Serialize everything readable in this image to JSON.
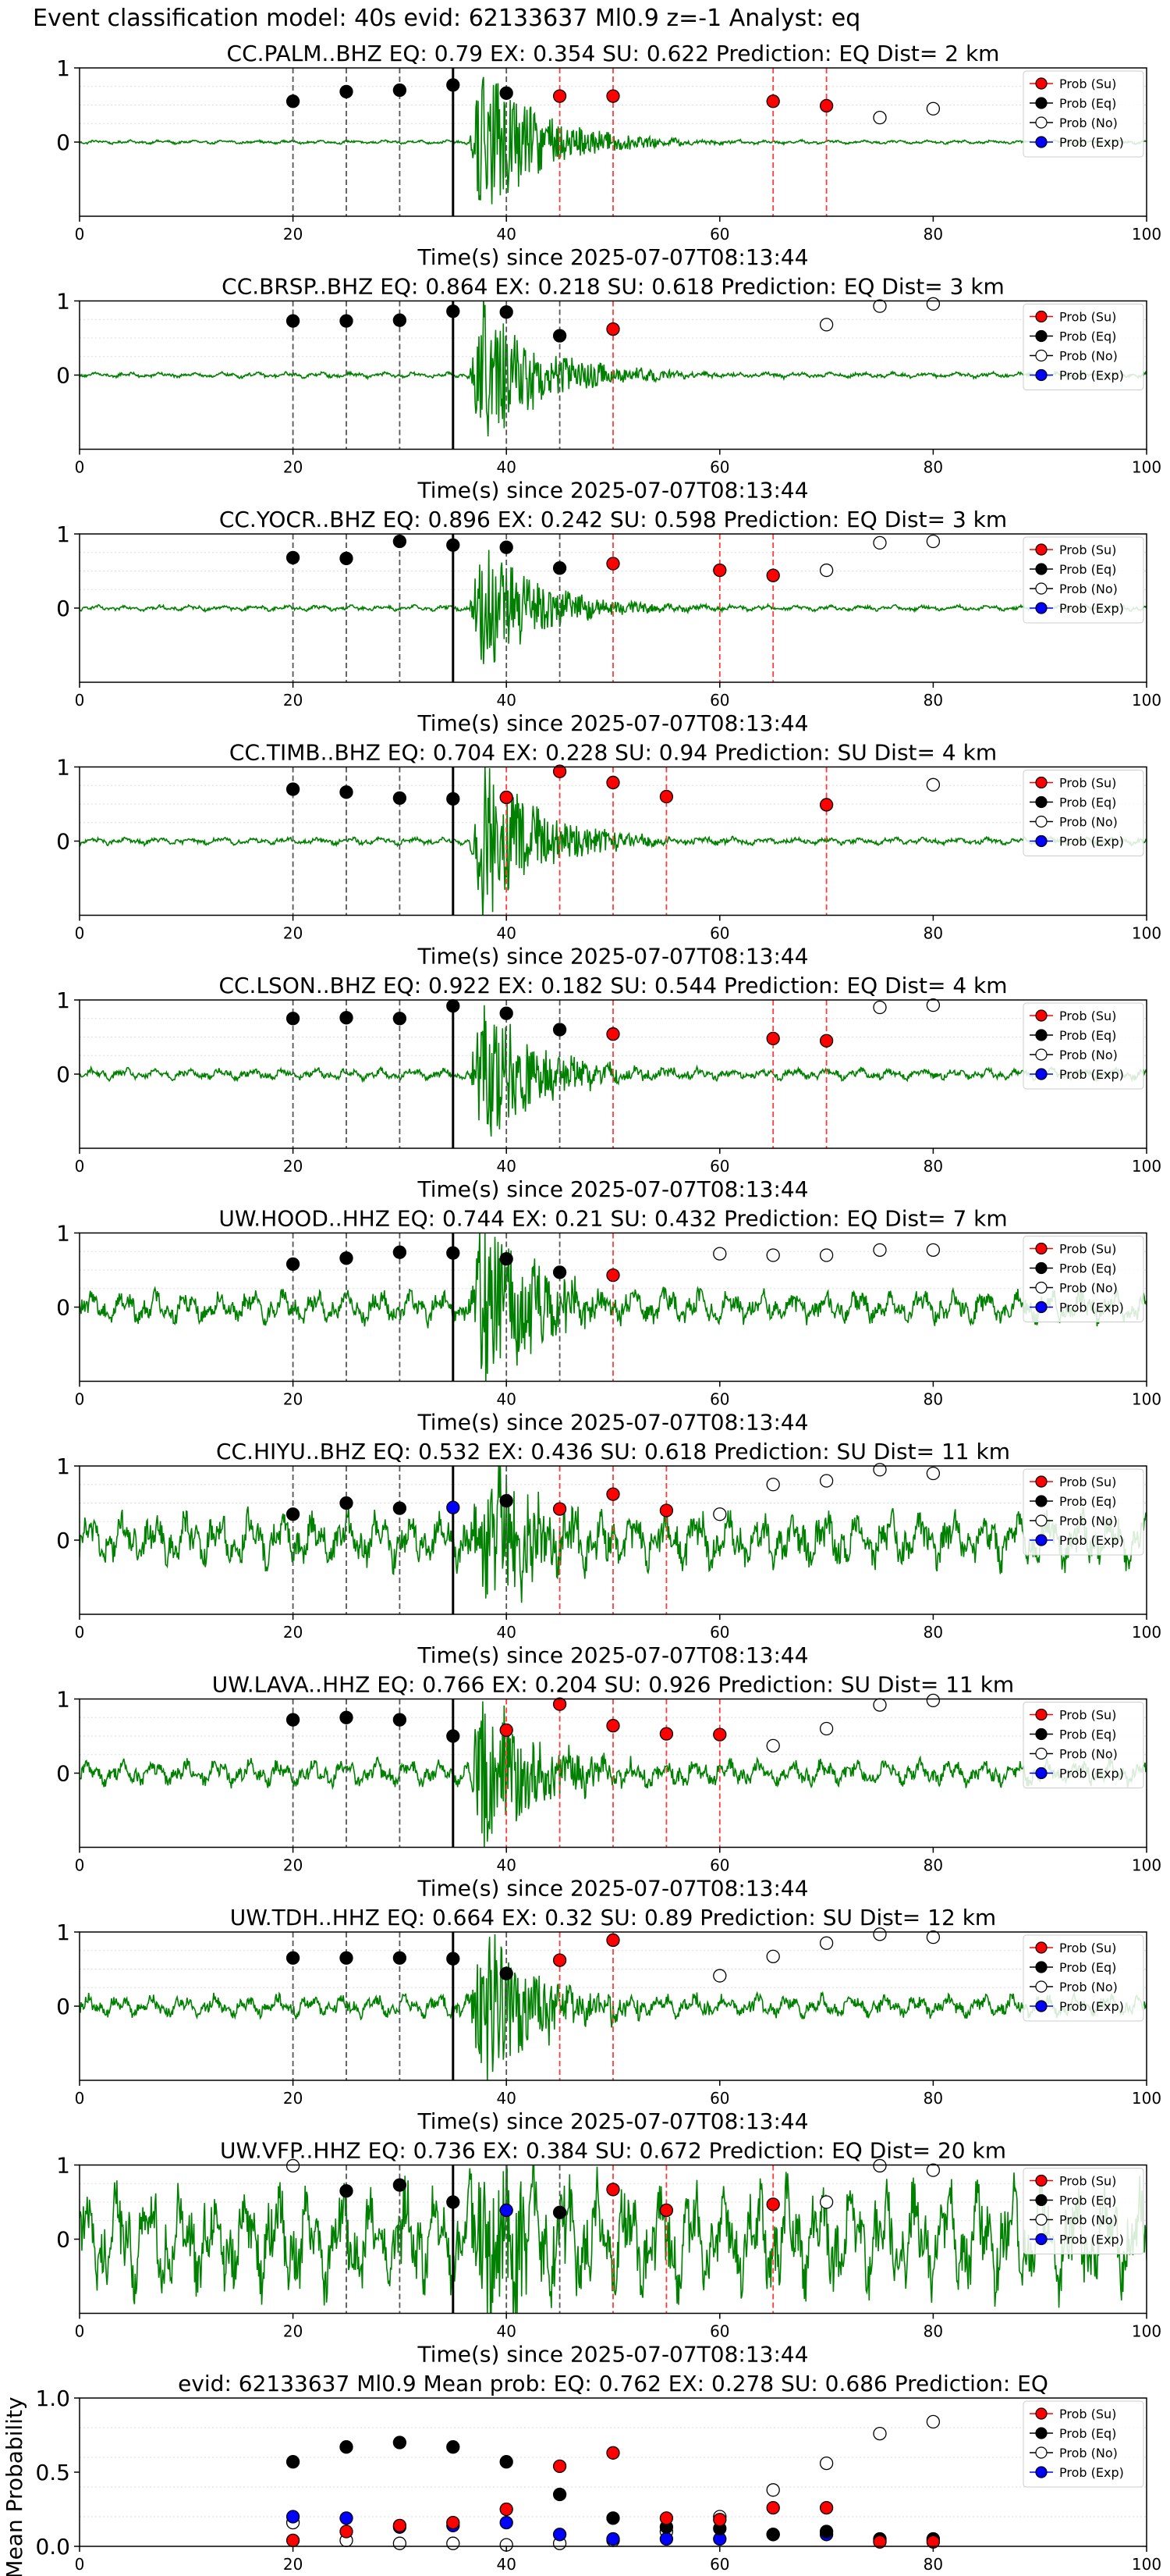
{
  "figure": {
    "suptitle": "Event classification model: 40s evid: 62133637 Ml0.9 z=-1 Analyst: eq",
    "legend": [
      "Prob (Su)",
      "Prob (Eq)",
      "Prob (No)",
      "Prob (Exp)"
    ],
    "legend_colors": {
      "su": "#ff0000",
      "eq": "#000000",
      "no": "#ffffff",
      "exp": "#0000ff"
    },
    "waveform_color": "#008000",
    "origin_line": 35
  },
  "chart_data": [
    {
      "type": "scatter",
      "title": "CC.PALM..BHZ   EQ: 0.79  EX: 0.354  SU: 0.622   Prediction: EQ    Dist= 2 km",
      "xlabel": "Time(s) since 2025-07-07T08:13:44",
      "ylabel": "",
      "xlim": [
        0,
        100
      ],
      "ylim": [
        -1,
        1
      ],
      "xticks": [
        "0",
        "20",
        "40",
        "60",
        "80",
        "100"
      ],
      "yticks": [
        "1",
        "0"
      ],
      "waveform_amplitude": 0.9,
      "noise_level": 0.02,
      "eq": [
        [
          20,
          0.55
        ],
        [
          25,
          0.68
        ],
        [
          30,
          0.7
        ],
        [
          35,
          0.77
        ],
        [
          40,
          0.66
        ]
      ],
      "su": [
        [
          45,
          0.62
        ],
        [
          50,
          0.62
        ],
        [
          65,
          0.55
        ],
        [
          70,
          0.49
        ]
      ],
      "no": [
        [
          75,
          0.33
        ],
        [
          80,
          0.45
        ]
      ],
      "exp": []
    },
    {
      "type": "scatter",
      "title": "CC.BRSP..BHZ   EQ: 0.864  EX: 0.218  SU: 0.618   Prediction: EQ    Dist= 3 km",
      "xlabel": "Time(s) since 2025-07-07T08:13:44",
      "ylabel": "",
      "xlim": [
        0,
        100
      ],
      "ylim": [
        -1,
        1
      ],
      "xticks": [
        "0",
        "20",
        "40",
        "60",
        "80",
        "100"
      ],
      "yticks": [
        "1",
        "0"
      ],
      "waveform_amplitude": 0.85,
      "noise_level": 0.03,
      "eq": [
        [
          20,
          0.73
        ],
        [
          25,
          0.73
        ],
        [
          30,
          0.74
        ],
        [
          35,
          0.86
        ],
        [
          40,
          0.85
        ],
        [
          45,
          0.53
        ]
      ],
      "su": [
        [
          50,
          0.62
        ]
      ],
      "no": [
        [
          70,
          0.68
        ],
        [
          75,
          0.93
        ],
        [
          80,
          0.96
        ]
      ],
      "exp": []
    },
    {
      "type": "scatter",
      "title": "CC.YOCR..BHZ   EQ: 0.896  EX: 0.242  SU: 0.598   Prediction: EQ    Dist= 3 km",
      "xlabel": "Time(s) since 2025-07-07T08:13:44",
      "ylabel": "",
      "xlim": [
        0,
        100
      ],
      "ylim": [
        -1,
        1
      ],
      "xticks": [
        "0",
        "20",
        "40",
        "60",
        "80",
        "100"
      ],
      "yticks": [
        "1",
        "0"
      ],
      "waveform_amplitude": 0.75,
      "noise_level": 0.03,
      "eq": [
        [
          20,
          0.68
        ],
        [
          25,
          0.67
        ],
        [
          30,
          0.9
        ],
        [
          35,
          0.85
        ],
        [
          40,
          0.82
        ],
        [
          45,
          0.54
        ]
      ],
      "su": [
        [
          50,
          0.6
        ],
        [
          60,
          0.51
        ],
        [
          65,
          0.44
        ]
      ],
      "no": [
        [
          70,
          0.51
        ],
        [
          75,
          0.88
        ],
        [
          80,
          0.9
        ]
      ],
      "exp": []
    },
    {
      "type": "scatter",
      "title": "CC.TIMB..BHZ   EQ: 0.704  EX: 0.228  SU: 0.94   Prediction: SU    Dist= 4 km",
      "xlabel": "Time(s) since 2025-07-07T08:13:44",
      "ylabel": "",
      "xlim": [
        0,
        100
      ],
      "ylim": [
        -1,
        1
      ],
      "xticks": [
        "0",
        "20",
        "40",
        "60",
        "80",
        "100"
      ],
      "yticks": [
        "1",
        "0"
      ],
      "waveform_amplitude": 0.95,
      "noise_level": 0.04,
      "eq": [
        [
          20,
          0.7
        ],
        [
          25,
          0.66
        ],
        [
          30,
          0.58
        ],
        [
          35,
          0.57
        ]
      ],
      "su": [
        [
          40,
          0.59
        ],
        [
          45,
          0.94
        ],
        [
          50,
          0.79
        ],
        [
          55,
          0.6
        ],
        [
          70,
          0.49
        ]
      ],
      "no": [
        [
          80,
          0.76
        ]
      ],
      "exp": []
    },
    {
      "type": "scatter",
      "title": "CC.LSON..BHZ   EQ: 0.922  EX: 0.182  SU: 0.544   Prediction: EQ    Dist= 4 km",
      "xlabel": "Time(s) since 2025-07-07T08:13:44",
      "ylabel": "",
      "xlim": [
        0,
        100
      ],
      "ylim": [
        -1,
        1
      ],
      "xticks": [
        "0",
        "20",
        "40",
        "60",
        "80",
        "100"
      ],
      "yticks": [
        "1",
        "0"
      ],
      "waveform_amplitude": 0.8,
      "noise_level": 0.06,
      "eq": [
        [
          20,
          0.75
        ],
        [
          25,
          0.76
        ],
        [
          30,
          0.75
        ],
        [
          35,
          0.92
        ],
        [
          40,
          0.82
        ],
        [
          45,
          0.6
        ]
      ],
      "su": [
        [
          50,
          0.54
        ],
        [
          65,
          0.48
        ],
        [
          70,
          0.45
        ]
      ],
      "no": [
        [
          75,
          0.9
        ],
        [
          80,
          0.93
        ]
      ],
      "exp": []
    },
    {
      "type": "scatter",
      "title": "UW.HOOD..HHZ   EQ: 0.744  EX: 0.21  SU: 0.432   Prediction: EQ    Dist= 7 km",
      "xlabel": "Time(s) since 2025-07-07T08:13:44",
      "ylabel": "",
      "xlim": [
        0,
        100
      ],
      "ylim": [
        -1,
        1
      ],
      "xticks": [
        "0",
        "20",
        "40",
        "60",
        "80",
        "100"
      ],
      "yticks": [
        "1",
        "0"
      ],
      "waveform_amplitude": 0.95,
      "noise_level": 0.18,
      "eq": [
        [
          20,
          0.58
        ],
        [
          25,
          0.66
        ],
        [
          30,
          0.74
        ],
        [
          35,
          0.73
        ],
        [
          40,
          0.65
        ],
        [
          45,
          0.47
        ]
      ],
      "su": [
        [
          50,
          0.43
        ]
      ],
      "no": [
        [
          60,
          0.72
        ],
        [
          65,
          0.7
        ],
        [
          70,
          0.7
        ],
        [
          75,
          0.77
        ],
        [
          80,
          0.77
        ]
      ],
      "exp": []
    },
    {
      "type": "scatter",
      "title": "CC.HIYU..BHZ   EQ: 0.532  EX: 0.436  SU: 0.618   Prediction: SU    Dist= 11 km",
      "xlabel": "Time(s) since 2025-07-07T08:13:44",
      "ylabel": "",
      "xlim": [
        0,
        100
      ],
      "ylim": [
        -1,
        1
      ],
      "xticks": [
        "0",
        "20",
        "40",
        "60",
        "80",
        "100"
      ],
      "yticks": [
        "1",
        "0"
      ],
      "waveform_amplitude": 0.95,
      "noise_level": 0.3,
      "eq": [
        [
          20,
          0.35
        ],
        [
          25,
          0.5
        ],
        [
          30,
          0.43
        ],
        [
          40,
          0.53
        ]
      ],
      "su": [
        [
          45,
          0.42
        ],
        [
          50,
          0.62
        ],
        [
          55,
          0.4
        ]
      ],
      "no": [
        [
          60,
          0.35
        ],
        [
          65,
          0.75
        ],
        [
          70,
          0.8
        ],
        [
          75,
          0.95
        ],
        [
          80,
          0.9
        ]
      ],
      "exp": [
        [
          35,
          0.44
        ]
      ]
    },
    {
      "type": "scatter",
      "title": "UW.LAVA..HHZ   EQ: 0.766  EX: 0.204  SU: 0.926   Prediction: SU    Dist= 11 km",
      "xlabel": "Time(s) since 2025-07-07T08:13:44",
      "ylabel": "",
      "xlim": [
        0,
        100
      ],
      "ylim": [
        -1,
        1
      ],
      "xticks": [
        "0",
        "20",
        "40",
        "60",
        "80",
        "100"
      ],
      "yticks": [
        "1",
        "0"
      ],
      "waveform_amplitude": 0.95,
      "noise_level": 0.14,
      "eq": [
        [
          20,
          0.72
        ],
        [
          25,
          0.75
        ],
        [
          30,
          0.72
        ],
        [
          35,
          0.5
        ]
      ],
      "su": [
        [
          40,
          0.58
        ],
        [
          45,
          0.93
        ],
        [
          50,
          0.64
        ],
        [
          55,
          0.53
        ],
        [
          60,
          0.52
        ]
      ],
      "no": [
        [
          65,
          0.37
        ],
        [
          70,
          0.6
        ],
        [
          75,
          0.92
        ],
        [
          80,
          0.98
        ]
      ],
      "exp": []
    },
    {
      "type": "scatter",
      "title": "UW.TDH..HHZ   EQ: 0.664  EX: 0.32  SU: 0.89   Prediction: SU    Dist= 12 km",
      "xlabel": "Time(s) since 2025-07-07T08:13:44",
      "ylabel": "",
      "xlim": [
        0,
        100
      ],
      "ylim": [
        -1,
        1
      ],
      "xticks": [
        "0",
        "20",
        "40",
        "60",
        "80",
        "100"
      ],
      "yticks": [
        "1",
        "0"
      ],
      "waveform_amplitude": 0.95,
      "noise_level": 0.12,
      "eq": [
        [
          20,
          0.65
        ],
        [
          25,
          0.65
        ],
        [
          30,
          0.65
        ],
        [
          35,
          0.64
        ],
        [
          40,
          0.44
        ]
      ],
      "su": [
        [
          45,
          0.62
        ],
        [
          50,
          0.89
        ]
      ],
      "no": [
        [
          60,
          0.41
        ],
        [
          65,
          0.67
        ],
        [
          70,
          0.85
        ],
        [
          75,
          0.97
        ],
        [
          80,
          0.93
        ]
      ],
      "exp": []
    },
    {
      "type": "scatter",
      "title": "UW.VFP..HHZ   EQ: 0.736  EX: 0.384  SU: 0.672   Prediction: EQ    Dist= 20 km",
      "xlabel": "Time(s) since 2025-07-07T08:13:44",
      "ylabel": "",
      "xlim": [
        0,
        100
      ],
      "ylim": [
        -1,
        1
      ],
      "xticks": [
        "0",
        "20",
        "40",
        "60",
        "80",
        "100"
      ],
      "yticks": [
        "1",
        "0"
      ],
      "waveform_amplitude": 0.95,
      "noise_level": 0.6,
      "eq": [
        [
          25,
          0.65
        ],
        [
          30,
          0.73
        ],
        [
          35,
          0.5
        ],
        [
          45,
          0.36
        ]
      ],
      "su": [
        [
          50,
          0.67
        ],
        [
          55,
          0.39
        ],
        [
          65,
          0.47
        ]
      ],
      "no": [
        [
          20,
          0.99
        ],
        [
          70,
          0.5
        ],
        [
          75,
          0.99
        ],
        [
          80,
          0.93
        ]
      ],
      "exp": [
        [
          40,
          0.39
        ]
      ]
    },
    {
      "type": "scatter",
      "title": "evid: 62133637   Ml0.9   Mean prob:   EQ: 0.762  EX: 0.278  SU: 0.686   Prediction: EQ",
      "xlabel": "",
      "ylabel": "Mean Probability",
      "xlim": [
        0,
        100
      ],
      "ylim": [
        0,
        1
      ],
      "xticks": [
        "0",
        "20",
        "40",
        "60",
        "80",
        "100"
      ],
      "yticks": [
        "0.0",
        "0.5",
        "1.0"
      ],
      "eq": [
        [
          20,
          0.57
        ],
        [
          25,
          0.67
        ],
        [
          30,
          0.7
        ],
        [
          35,
          0.67
        ],
        [
          40,
          0.57
        ],
        [
          45,
          0.35
        ],
        [
          50,
          0.19
        ],
        [
          55,
          0.13
        ],
        [
          60,
          0.12
        ],
        [
          65,
          0.08
        ],
        [
          70,
          0.1
        ],
        [
          75,
          0.05
        ],
        [
          80,
          0.05
        ]
      ],
      "su": [
        [
          20,
          0.04
        ],
        [
          25,
          0.1
        ],
        [
          30,
          0.14
        ],
        [
          35,
          0.16
        ],
        [
          40,
          0.25
        ],
        [
          45,
          0.54
        ],
        [
          50,
          0.63
        ],
        [
          55,
          0.19
        ],
        [
          60,
          0.18
        ],
        [
          65,
          0.26
        ],
        [
          70,
          0.26
        ],
        [
          75,
          0.03
        ],
        [
          80,
          0.03
        ]
      ],
      "no": [
        [
          20,
          0.16
        ],
        [
          25,
          0.04
        ],
        [
          30,
          0.02
        ],
        [
          35,
          0.02
        ],
        [
          40,
          0.01
        ],
        [
          45,
          0.02
        ],
        [
          50,
          0.04
        ],
        [
          55,
          0.1
        ],
        [
          60,
          0.2
        ],
        [
          65,
          0.38
        ],
        [
          70,
          0.56
        ],
        [
          75,
          0.76
        ],
        [
          80,
          0.84
        ]
      ],
      "exp": [
        [
          20,
          0.2
        ],
        [
          25,
          0.19
        ],
        [
          30,
          0.13
        ],
        [
          35,
          0.14
        ],
        [
          40,
          0.16
        ],
        [
          45,
          0.08
        ],
        [
          50,
          0.05
        ],
        [
          55,
          0.05
        ],
        [
          60,
          0.05
        ],
        [
          65,
          0.08
        ],
        [
          70,
          0.08
        ],
        [
          75,
          0.04
        ],
        [
          80,
          0.04
        ]
      ]
    }
  ]
}
